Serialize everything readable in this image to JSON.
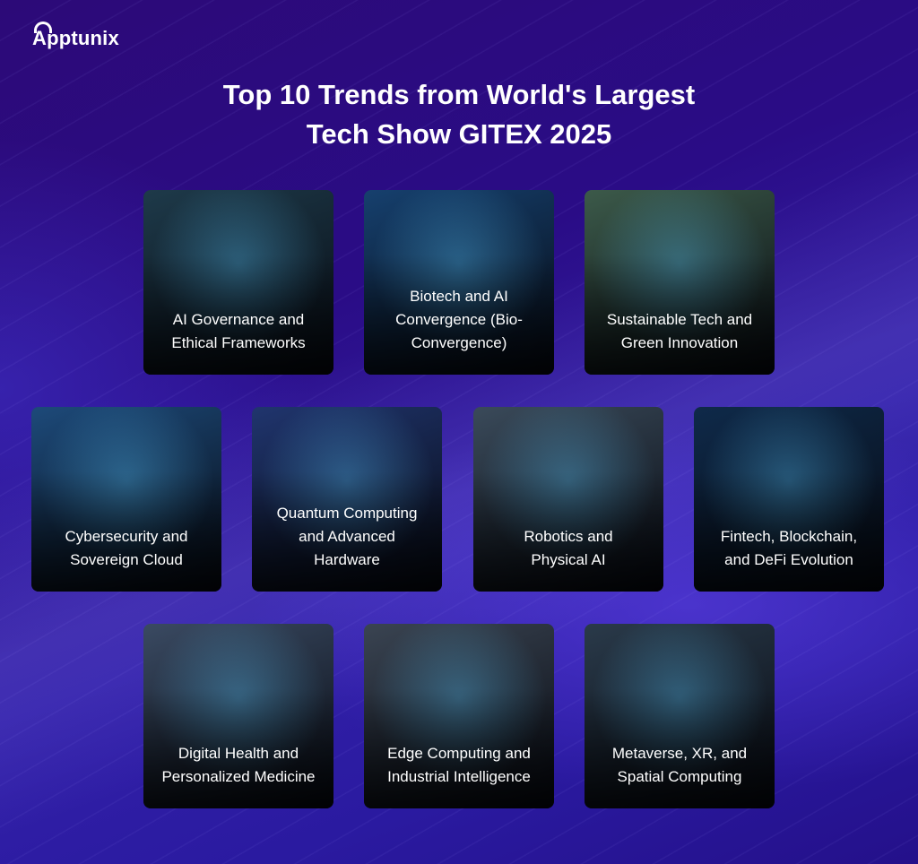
{
  "brand": {
    "logo": "Apptunix"
  },
  "title": {
    "line1": "Top 10 Trends from World's Largest",
    "line2": "Tech Show GITEX  2025"
  },
  "trends": [
    {
      "label": "AI Governance and\nEthical Frameworks",
      "color": "#1e3a4a"
    },
    {
      "label": "Biotech and AI\nConvergence (Bio-\nConvergence)",
      "color": "#16406e"
    },
    {
      "label": "Sustainable Tech and\nGreen Innovation",
      "color": "#3c5a4a"
    },
    {
      "label": "Cybersecurity and\nSovereign Cloud",
      "color": "#1d4a7a"
    },
    {
      "label": "Quantum Computing\nand Advanced\nHardware",
      "color": "#20356e"
    },
    {
      "label": "Robotics and\nPhysical AI",
      "color": "#3a4a5a"
    },
    {
      "label": "Fintech, Blockchain,\nand DeFi Evolution",
      "color": "#0f2a4a"
    },
    {
      "label": "Digital Health and\nPersonalized Medicine",
      "color": "#3a4a62"
    },
    {
      "label": "Edge Computing and\nIndustrial Intelligence",
      "color": "#3a4452"
    },
    {
      "label": "Metaverse, XR, and\nSpatial Computing",
      "color": "#2a3a4a"
    }
  ]
}
